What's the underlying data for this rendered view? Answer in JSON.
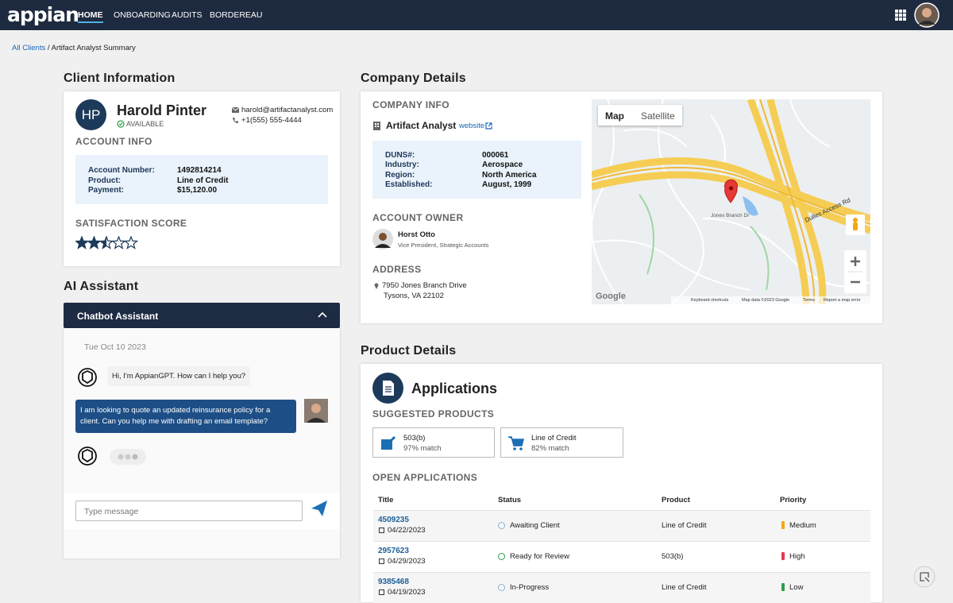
{
  "nav": {
    "logo": "appian",
    "items": [
      "HOME",
      "ONBOARDING",
      "AUDITS",
      "BORDEREAU"
    ]
  },
  "breadcrumb": {
    "link": "All Clients",
    "separator": "/",
    "current": "Artifact Analyst Summary"
  },
  "client": {
    "heading": "Client Information",
    "initials": "HP",
    "name": "Harold Pinter",
    "status": "AVAILABLE",
    "email": "harold@artifactanalyst.com",
    "phone": "+1(555) 555-4444",
    "account_heading": "ACCOUNT INFO",
    "account": [
      [
        "Account Number:",
        "1492814214"
      ],
      [
        "Product:",
        "Line of Credit"
      ],
      [
        "Payment:",
        "$15,120.00"
      ]
    ],
    "satisfaction_heading": "SATISFACTION SCORE",
    "satisfaction_score": 2.5,
    "satisfaction_max": 5
  },
  "assistant": {
    "heading": "AI Assistant",
    "panel_title": "Chatbot Assistant",
    "date": "Tue Oct 10 2023",
    "messages": [
      "Hi, I'm AppianGPT. How can I help you?",
      "I am looking to quote an updated reinsurance policy for a client. Can you help me with drafting an email template?"
    ],
    "input_placeholder": "Type message"
  },
  "company": {
    "heading": "Company Details",
    "info_heading": "COMPANY INFO",
    "name": "Artifact Analyst",
    "website": "website",
    "details": [
      [
        "DUNS#:",
        "000061"
      ],
      [
        "Industry:",
        "Aerospace"
      ],
      [
        "Region:",
        "North America"
      ],
      [
        "Established:",
        "August, 1999"
      ]
    ],
    "owner_heading": "ACCOUNT OWNER",
    "owner_name": "Horst Otto",
    "owner_title": "Vice President, Strategic Accounts",
    "address_heading": "ADDRESS",
    "address": [
      "7950 Jones Branch Drive",
      "Tysons, VA 22102"
    ]
  },
  "map": {
    "tabs": [
      "Map",
      "Satellite"
    ],
    "labels": [
      "Dulles Access Rd",
      "Jones Branch Dr"
    ],
    "google": "Google",
    "attribution": [
      "Keyboard shortcuts",
      "Map data ©2023 Google",
      "Terms",
      "Report a map error"
    ]
  },
  "product": {
    "heading": "Product Details",
    "title": "Applications",
    "suggested_heading": "SUGGESTED PRODUCTS",
    "suggested": [
      {
        "name": "503(b)",
        "match": "97% match"
      },
      {
        "name": "Line of Credit",
        "match": "82% match"
      }
    ],
    "open_heading": "OPEN APPLICATIONS",
    "columns": [
      "Title",
      "Status",
      "Product",
      "Priority"
    ],
    "rows": [
      {
        "id": "4509235",
        "date": "04/22/2023",
        "status": "Awaiting Client",
        "product": "Line of Credit",
        "priority": "Medium"
      },
      {
        "id": "2957623",
        "date": "04/29/2023",
        "status": "Ready for Review",
        "product": "503(b)",
        "priority": "High"
      },
      {
        "id": "9385468",
        "date": "04/19/2023",
        "status": "In-Progress",
        "product": "Line of Credit",
        "priority": "Low"
      }
    ]
  }
}
